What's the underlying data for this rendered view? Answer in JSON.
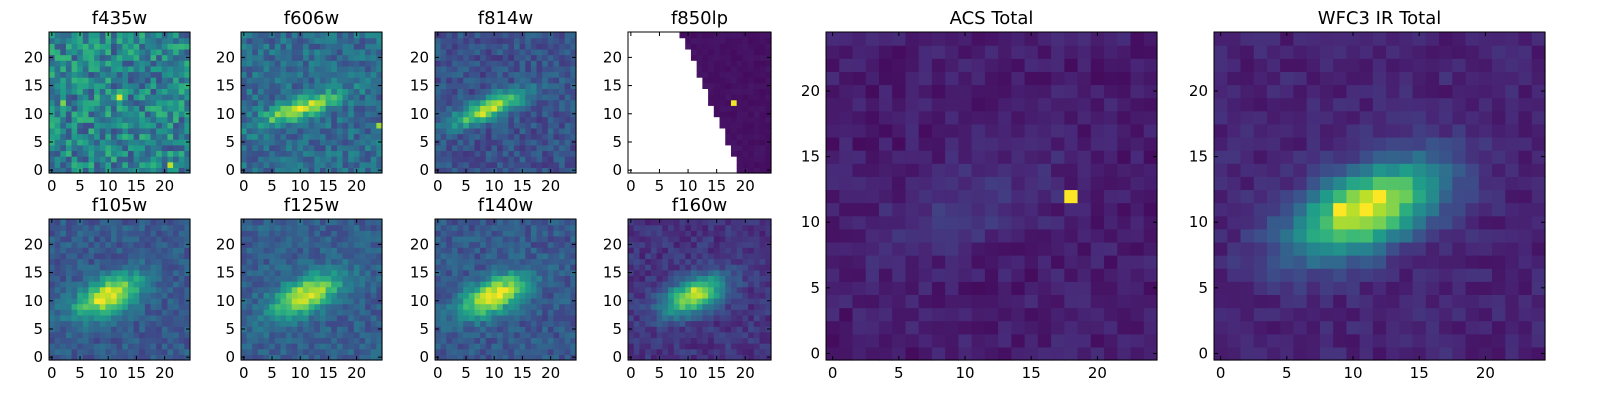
{
  "figure": {
    "colormap": "viridis",
    "colormap_stops": [
      "#440154",
      "#482878",
      "#3e4a89",
      "#31688e",
      "#26828e",
      "#1f9e89",
      "#35b779",
      "#6ece58",
      "#b5de2b",
      "#fde725"
    ],
    "masked_color": "#ffffff",
    "axis_color": "#000000"
  },
  "chart_data": [
    {
      "type": "heatmap",
      "title": "f435w",
      "grid_size": 25,
      "xlim": [
        0,
        24
      ],
      "ylim": [
        0,
        24
      ],
      "xticks": [
        0,
        5,
        10,
        15,
        20
      ],
      "yticks": [
        0,
        5,
        10,
        15,
        20
      ],
      "pattern": "noise",
      "noise_level": 0.45,
      "noise_spread": 0.22,
      "hot_pixels": [
        [
          12,
          13,
          0.95
        ],
        [
          21,
          1,
          0.9
        ],
        [
          2,
          12,
          0.8
        ]
      ],
      "seed": 11
    },
    {
      "type": "heatmap",
      "title": "f606w",
      "grid_size": 25,
      "xlim": [
        0,
        24
      ],
      "ylim": [
        0,
        24
      ],
      "xticks": [
        0,
        5,
        10,
        15,
        20
      ],
      "yticks": [
        0,
        5,
        10,
        15,
        20
      ],
      "pattern": "galaxy",
      "center": [
        10,
        11
      ],
      "sigma_major": 5,
      "sigma_minor": 1.2,
      "angle_deg": 20,
      "peak": 0.55,
      "background": 0.35,
      "noise": 0.13,
      "hot_pixels": [
        [
          12,
          12,
          0.95
        ],
        [
          9,
          11,
          0.9
        ],
        [
          24,
          8,
          0.85
        ]
      ],
      "seed": 22
    },
    {
      "type": "heatmap",
      "title": "f814w",
      "grid_size": 25,
      "xlim": [
        0,
        24
      ],
      "ylim": [
        0,
        24
      ],
      "xticks": [
        0,
        5,
        10,
        15,
        20
      ],
      "yticks": [
        0,
        5,
        10,
        15,
        20
      ],
      "pattern": "galaxy",
      "center": [
        9,
        11
      ],
      "sigma_major": 5,
      "sigma_minor": 1.3,
      "angle_deg": 22,
      "peak": 0.65,
      "background": 0.25,
      "noise": 0.1,
      "hot_pixels": [
        [
          8,
          10,
          0.95
        ]
      ],
      "seed": 33
    },
    {
      "type": "heatmap",
      "title": "f850lp",
      "grid_size": 25,
      "xlim": [
        0,
        24
      ],
      "ylim": [
        0,
        24
      ],
      "xticks": [
        0,
        5,
        10,
        15,
        20
      ],
      "yticks": [
        0,
        5,
        10,
        15,
        20
      ],
      "pattern": "masked-edge",
      "mask_edge_top_x": 9,
      "mask_edge_bottom_x": 19,
      "background": 0.03,
      "noise": 0.03,
      "hot_pixels": [
        [
          18,
          12,
          0.98
        ]
      ],
      "seed": 44
    },
    {
      "type": "heatmap",
      "title": "f105w",
      "grid_size": 25,
      "xlim": [
        0,
        24
      ],
      "ylim": [
        0,
        24
      ],
      "xticks": [
        0,
        5,
        10,
        15,
        20
      ],
      "yticks": [
        0,
        5,
        10,
        15,
        20
      ],
      "pattern": "galaxy",
      "center": [
        10,
        11
      ],
      "sigma_major": 4.5,
      "sigma_minor": 2,
      "angle_deg": 25,
      "peak": 0.7,
      "background": 0.28,
      "noise": 0.09,
      "hot_pixels": [
        [
          9,
          10,
          0.98
        ]
      ],
      "seed": 55
    },
    {
      "type": "heatmap",
      "title": "f125w",
      "grid_size": 25,
      "xlim": [
        0,
        24
      ],
      "ylim": [
        0,
        24
      ],
      "xticks": [
        0,
        5,
        10,
        15,
        20
      ],
      "yticks": [
        0,
        5,
        10,
        15,
        20
      ],
      "pattern": "galaxy",
      "center": [
        11,
        11
      ],
      "sigma_major": 4.5,
      "sigma_minor": 2,
      "angle_deg": 25,
      "peak": 0.65,
      "background": 0.3,
      "noise": 0.09,
      "hot_pixels": [
        [
          10,
          10,
          0.92
        ]
      ],
      "seed": 66
    },
    {
      "type": "heatmap",
      "title": "f140w",
      "grid_size": 25,
      "xlim": [
        0,
        24
      ],
      "ylim": [
        0,
        24
      ],
      "xticks": [
        0,
        5,
        10,
        15,
        20
      ],
      "yticks": [
        0,
        5,
        10,
        15,
        20
      ],
      "pattern": "galaxy",
      "center": [
        10,
        11
      ],
      "sigma_major": 4.5,
      "sigma_minor": 2,
      "angle_deg": 25,
      "peak": 0.72,
      "background": 0.27,
      "noise": 0.09,
      "hot_pixels": [
        [
          9,
          11,
          0.97
        ]
      ],
      "seed": 77
    },
    {
      "type": "heatmap",
      "title": "f160w",
      "grid_size": 25,
      "xlim": [
        0,
        24
      ],
      "ylim": [
        0,
        24
      ],
      "xticks": [
        0,
        5,
        10,
        15,
        20
      ],
      "yticks": [
        0,
        5,
        10,
        15,
        20
      ],
      "pattern": "galaxy",
      "center": [
        11,
        11
      ],
      "sigma_major": 4,
      "sigma_minor": 2,
      "angle_deg": 25,
      "peak": 0.75,
      "background": 0.15,
      "noise": 0.07,
      "hot_pixels": [
        [
          11,
          12,
          0.95
        ]
      ],
      "seed": 88
    },
    {
      "type": "heatmap",
      "title": "ACS Total",
      "grid_size": 25,
      "xlim": [
        0,
        24
      ],
      "ylim": [
        0,
        24
      ],
      "xticks": [
        0,
        5,
        10,
        15,
        20
      ],
      "yticks": [
        0,
        5,
        10,
        15,
        20
      ],
      "pattern": "galaxy",
      "center": [
        10,
        11
      ],
      "sigma_major": 5,
      "sigma_minor": 2,
      "angle_deg": 22,
      "peak": 0.09,
      "background": 0.08,
      "noise": 0.05,
      "hot_pixels": [
        [
          18,
          12,
          1.0
        ]
      ],
      "seed": 99
    },
    {
      "type": "heatmap",
      "title": "WFC3 IR Total",
      "grid_size": 25,
      "xlim": [
        0,
        24
      ],
      "ylim": [
        0,
        24
      ],
      "xticks": [
        0,
        5,
        10,
        15,
        20
      ],
      "yticks": [
        0,
        5,
        10,
        15,
        20
      ],
      "pattern": "galaxy",
      "center": [
        11,
        11
      ],
      "sigma_major": 4.2,
      "sigma_minor": 2,
      "angle_deg": 25,
      "peak": 0.85,
      "background": 0.1,
      "noise": 0.05,
      "hot_pixels": [
        [
          9,
          11,
          1.0
        ],
        [
          12,
          12,
          1.0
        ]
      ],
      "seed": 111
    }
  ]
}
